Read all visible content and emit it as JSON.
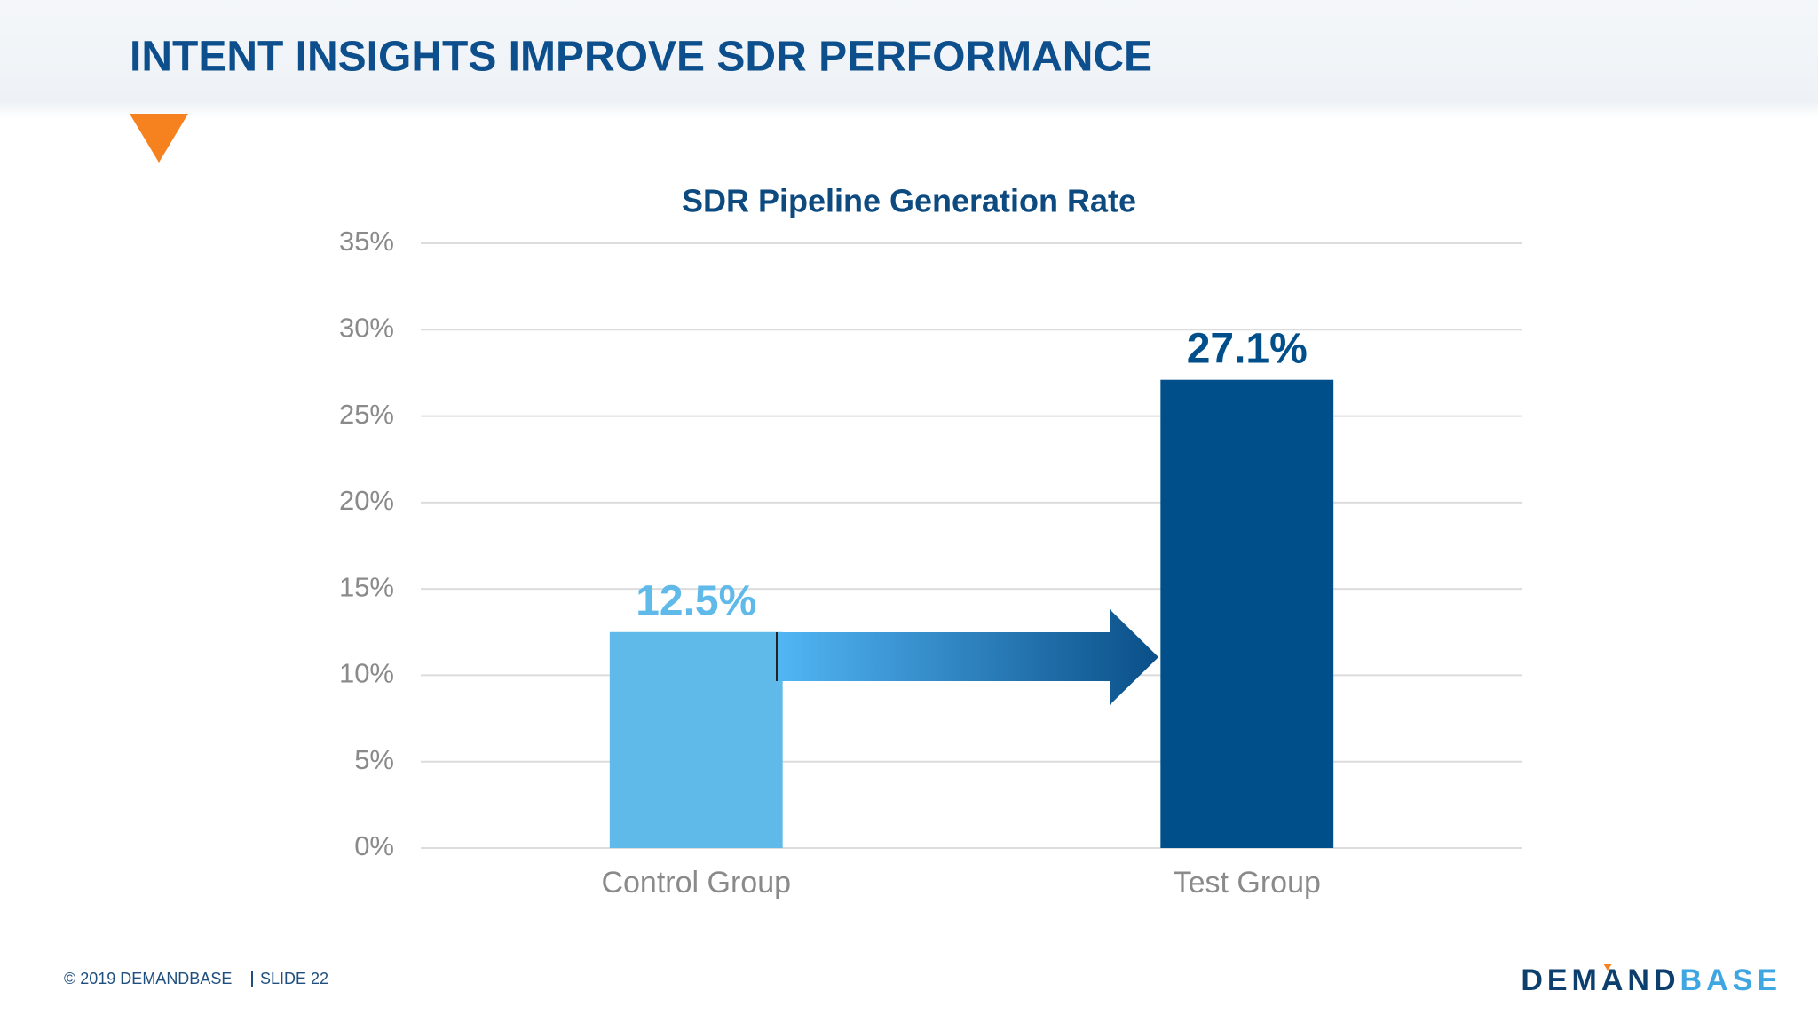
{
  "title": "INTENT INSIGHTS IMPROVE SDR PERFORMANCE",
  "chart_data": {
    "type": "bar",
    "title": "SDR Pipeline Generation Rate",
    "categories": [
      "Control Group",
      "Test Group"
    ],
    "values": [
      12.5,
      27.1
    ],
    "value_labels": [
      "12.5%",
      "27.1%"
    ],
    "colors": [
      "#5fbae9",
      "#004f8a"
    ],
    "ylim": [
      0,
      35
    ],
    "yticks": [
      {
        "value": 0,
        "label": "0%"
      },
      {
        "value": 5,
        "label": "5%"
      },
      {
        "value": 10,
        "label": "10%"
      },
      {
        "value": 15,
        "label": "15%"
      },
      {
        "value": 20,
        "label": "20%"
      },
      {
        "value": 25,
        "label": "25%"
      },
      {
        "value": 30,
        "label": "30%"
      },
      {
        "value": 35,
        "label": "35%"
      }
    ],
    "grid": true
  },
  "footer": {
    "copyright": "© 2019 DEMANDBASE",
    "slide": "SLIDE 22"
  },
  "logo": {
    "dark": "DEMAND",
    "light": "BASE"
  }
}
